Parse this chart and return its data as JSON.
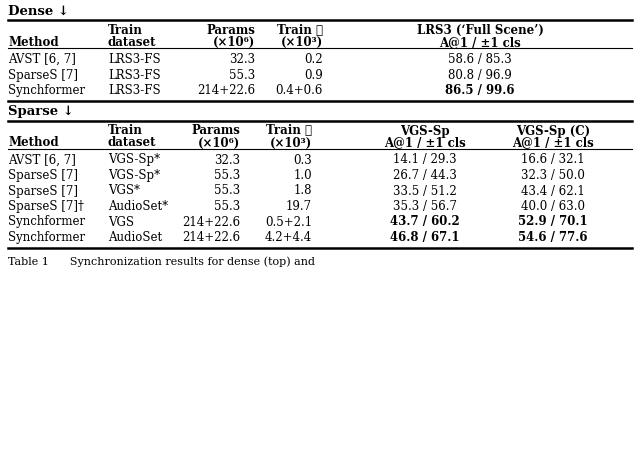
{
  "bg_color": "#ffffff",
  "dense_header": "Dense ↓",
  "sparse_header": "Sparse ↓",
  "dense_col_headers_line1": [
    "",
    "Train",
    "Params",
    "Train ⏱",
    "LRS3 (‘Full Scene’)"
  ],
  "dense_col_headers_line2": [
    "Method",
    "dataset",
    "(×10⁶)",
    "(×10³)",
    "A@1 / ±1 cls"
  ],
  "dense_rows": [
    [
      "AVST [6, 7]",
      "LRS3-FS",
      "32.3",
      "0.2",
      "58.6 / 85.3"
    ],
    [
      "SparseS [7]",
      "LRS3-FS",
      "55.3",
      "0.9",
      "80.8 / 96.9"
    ],
    [
      "Synchformer",
      "LRS3-FS",
      "214+22.6",
      "0.4+0.6",
      "86.5 / 99.6"
    ]
  ],
  "dense_bold_rows": [
    2
  ],
  "dense_bold_cols": [
    4
  ],
  "sparse_col_headers_line1": [
    "",
    "Train",
    "Params",
    "Train ⏱",
    "VGS-Sp",
    "VGS-Sp (C)"
  ],
  "sparse_col_headers_line2": [
    "Method",
    "dataset",
    "(×10⁶)",
    "(×10³)",
    "A@1 / ±1 cls",
    "A@1 / ±1 cls"
  ],
  "sparse_rows": [
    [
      "AVST [6, 7]",
      "VGS-Sp*",
      "32.3",
      "0.3",
      "14.1 / 29.3",
      "16.6 / 32.1"
    ],
    [
      "SparseS [7]",
      "VGS-Sp*",
      "55.3",
      "1.0",
      "26.7 / 44.3",
      "32.3 / 50.0"
    ],
    [
      "SparseS [7]",
      "VGS*",
      "55.3",
      "1.8",
      "33.5 / 51.2",
      "43.4 / 62.1"
    ],
    [
      "SparseS [7]†",
      "AudioSet*",
      "55.3",
      "19.7",
      "35.3 / 56.7",
      "40.0 / 63.0"
    ],
    [
      "Synchformer",
      "VGS",
      "214+22.6",
      "0.5+2.1",
      "43.7 / 60.2",
      "52.9 / 70.1"
    ],
    [
      "Synchformer",
      "AudioSet",
      "214+22.6",
      "4.2+4.4",
      "46.8 / 67.1",
      "54.6 / 77.6"
    ]
  ],
  "sparse_bold_rows": [
    4,
    5
  ],
  "sparse_bold_cols": [
    4,
    5
  ],
  "footer_text": "Table 1      Synchronization results for dense (top) and"
}
